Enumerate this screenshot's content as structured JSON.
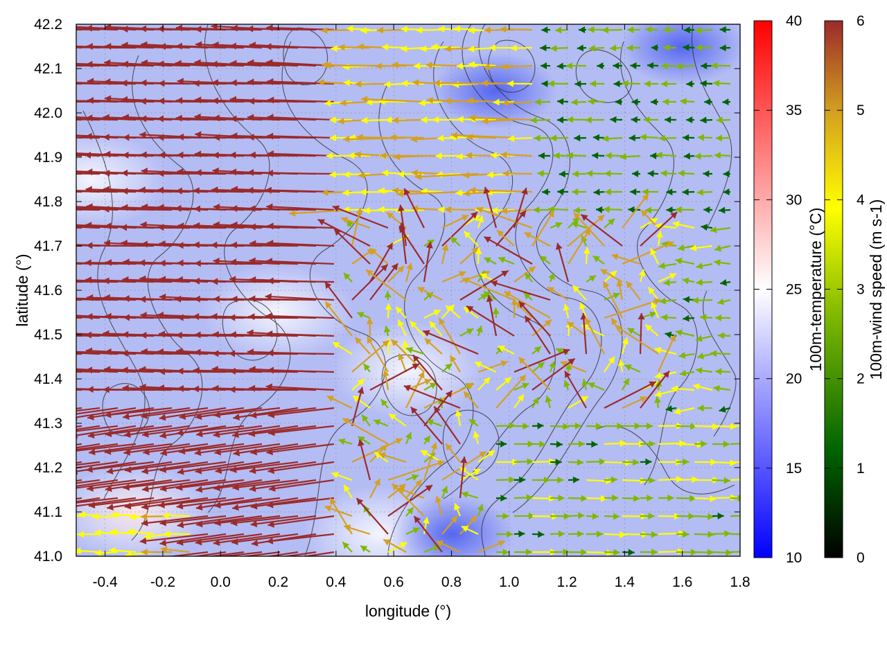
{
  "chart_data": {
    "type": "vector-field-heatmap",
    "title": "",
    "xlabel": "longitude (°)",
    "ylabel": "latitude (°)",
    "xlim": [
      -0.5,
      1.8
    ],
    "ylim": [
      41.0,
      42.2
    ],
    "x_ticks": [
      "-0.4",
      "-0.2",
      "0.0",
      "0.2",
      "0.4",
      "0.6",
      "0.8",
      "1.0",
      "1.2",
      "1.4",
      "1.6",
      "1.8"
    ],
    "x_tick_values": [
      -0.4,
      -0.2,
      0.0,
      0.2,
      0.4,
      0.6,
      0.8,
      1.0,
      1.2,
      1.4,
      1.6,
      1.8
    ],
    "y_ticks": [
      "41.0",
      "41.1",
      "41.2",
      "41.3",
      "41.4",
      "41.5",
      "41.6",
      "41.7",
      "41.8",
      "41.9",
      "42.0",
      "42.1",
      "42.2"
    ],
    "y_tick_values": [
      41.0,
      41.1,
      41.2,
      41.3,
      41.4,
      41.5,
      41.6,
      41.7,
      41.8,
      41.9,
      42.0,
      42.1,
      42.2
    ],
    "grid": true,
    "background_field": {
      "name": "100m-temperature",
      "units": "°C",
      "range": [
        10,
        40
      ],
      "palette": [
        "#0000ff",
        "#ffffff",
        "#ff0000"
      ],
      "colorbar_label": "100m-temperature (°C)",
      "colorbar_ticks": [
        "10",
        "15",
        "20",
        "25",
        "30",
        "35",
        "40"
      ],
      "colorbar_tick_values": [
        10,
        15,
        20,
        25,
        30,
        35,
        40
      ],
      "typical_value": 21,
      "warm_patches": [
        {
          "lon": -0.45,
          "lat": 41.85,
          "value": 23
        },
        {
          "lon": -0.3,
          "lat": 41.1,
          "value": 26
        },
        {
          "lon": 0.2,
          "lat": 41.55,
          "value": 22.5
        },
        {
          "lon": 0.55,
          "lat": 41.05,
          "value": 22
        },
        {
          "lon": 0.65,
          "lat": 41.42,
          "value": 23
        }
      ],
      "cool_patches": [
        {
          "lon": 1.6,
          "lat": 42.15,
          "value": 17
        },
        {
          "lon": 0.95,
          "lat": 42.05,
          "value": 18
        },
        {
          "lon": 0.8,
          "lat": 41.05,
          "value": 18.5
        }
      ]
    },
    "vector_field": {
      "name": "100m-wind speed",
      "units": "m s-1",
      "range": [
        0,
        6
      ],
      "palette": [
        "#000000",
        "#006400",
        "#7fb800",
        "#ffff00",
        "#d4a020",
        "#9b2a2a"
      ],
      "colorbar_label": "100m-wind speed (m s-1)",
      "colorbar_ticks": [
        "0",
        "1",
        "2",
        "3",
        "4",
        "5",
        "6"
      ],
      "colorbar_tick_values": [
        0,
        1,
        2,
        3,
        4,
        5,
        6
      ],
      "regimes": [
        {
          "region": "west",
          "lon_range": [
            -0.5,
            0.5
          ],
          "direction": "westward",
          "speed": 6
        },
        {
          "region": "north-central",
          "lon_range": [
            0.5,
            1.1
          ],
          "direction": "westward",
          "speed": 3.5
        },
        {
          "region": "north-east",
          "lon_range": [
            1.1,
            1.8
          ],
          "direction": "westward",
          "speed": 2
        },
        {
          "region": "south-east",
          "lon_range": [
            1.0,
            1.8
          ],
          "direction": "eastward",
          "speed": 3
        },
        {
          "region": "convergence",
          "lon_range": [
            0.4,
            1.5
          ],
          "direction": "divergent-upward",
          "speed": 5
        }
      ]
    },
    "contours": {
      "color": "#333333",
      "description": "terrain height"
    }
  }
}
